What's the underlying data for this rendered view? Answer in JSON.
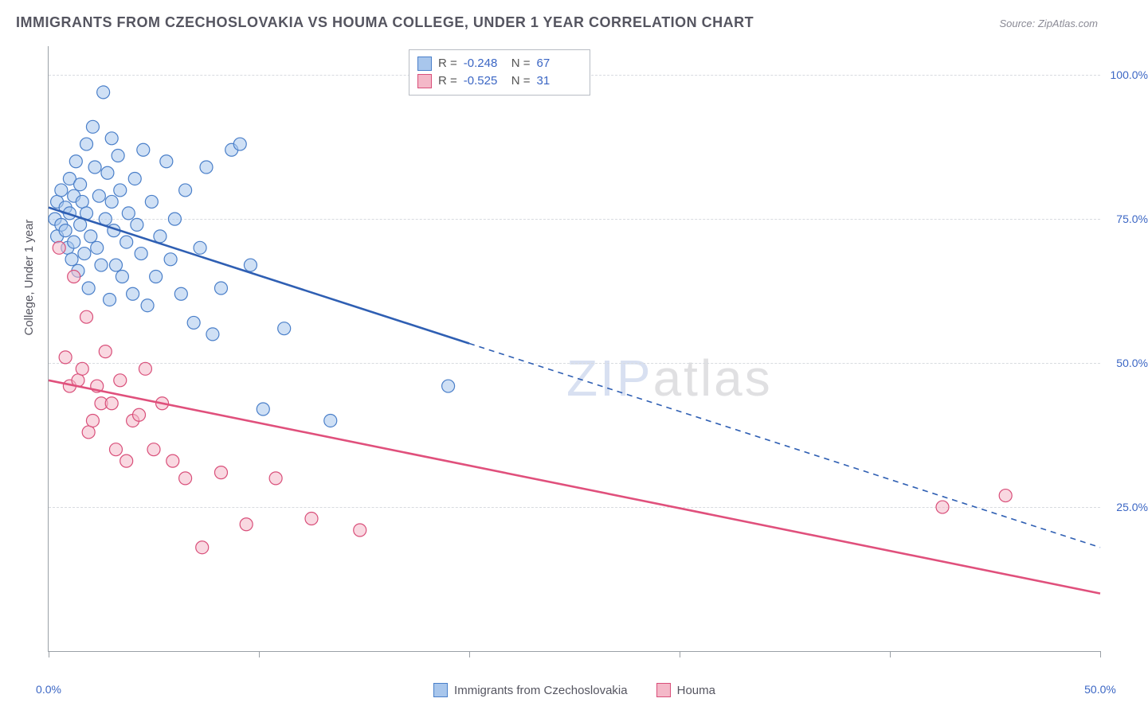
{
  "title": "IMMIGRANTS FROM CZECHOSLOVAKIA VS HOUMA COLLEGE, UNDER 1 YEAR CORRELATION CHART",
  "source_label": "Source: ZipAtlas.com",
  "ylabel": "College, Under 1 year",
  "watermark_zip": "ZIP",
  "watermark_atlas": "atlas",
  "chart": {
    "type": "scatter",
    "xlim": [
      0,
      50
    ],
    "ylim": [
      0,
      105
    ],
    "x_ticks": [
      0,
      10,
      20,
      30,
      40,
      50
    ],
    "x_tick_labels": [
      "0.0%",
      "",
      "",
      "",
      "",
      "50.0%"
    ],
    "y_gridlines": [
      25,
      50,
      75,
      100
    ],
    "y_tick_labels": [
      "25.0%",
      "50.0%",
      "75.0%",
      "100.0%"
    ],
    "background_color": "#ffffff",
    "grid_color": "#d8dbe0",
    "axis_color": "#9aa0a6"
  },
  "series": [
    {
      "key": "czech",
      "label": "Immigrants from Czechoslovakia",
      "fill": "#a8c6ec",
      "stroke": "#4a7fc9",
      "fill_opacity": 0.55,
      "line_color": "#2f5fb3",
      "marker_radius": 8,
      "R_label": "R =",
      "R": "-0.248",
      "N_label": "N =",
      "N": "67",
      "trend": {
        "x1": 0,
        "y1": 77,
        "x2": 50,
        "y2": 18,
        "solid_until_x": 20
      },
      "points": [
        [
          0.3,
          75
        ],
        [
          0.4,
          72
        ],
        [
          0.4,
          78
        ],
        [
          0.6,
          80
        ],
        [
          0.6,
          74
        ],
        [
          0.8,
          73
        ],
        [
          0.8,
          77
        ],
        [
          0.9,
          70
        ],
        [
          1.0,
          76
        ],
        [
          1.0,
          82
        ],
        [
          1.1,
          68
        ],
        [
          1.2,
          71
        ],
        [
          1.2,
          79
        ],
        [
          1.3,
          85
        ],
        [
          1.4,
          66
        ],
        [
          1.5,
          74
        ],
        [
          1.5,
          81
        ],
        [
          1.6,
          78
        ],
        [
          1.7,
          69
        ],
        [
          1.8,
          76
        ],
        [
          1.8,
          88
        ],
        [
          1.9,
          63
        ],
        [
          2.0,
          72
        ],
        [
          2.1,
          91
        ],
        [
          2.2,
          84
        ],
        [
          2.3,
          70
        ],
        [
          2.4,
          79
        ],
        [
          2.5,
          67
        ],
        [
          2.7,
          75
        ],
        [
          2.8,
          83
        ],
        [
          2.9,
          61
        ],
        [
          3.0,
          89
        ],
        [
          3.0,
          78
        ],
        [
          3.1,
          73
        ],
        [
          3.2,
          67
        ],
        [
          3.3,
          86
        ],
        [
          3.4,
          80
        ],
        [
          3.5,
          65
        ],
        [
          3.7,
          71
        ],
        [
          3.8,
          76
        ],
        [
          4.0,
          62
        ],
        [
          4.1,
          82
        ],
        [
          4.2,
          74
        ],
        [
          4.4,
          69
        ],
        [
          4.5,
          87
        ],
        [
          4.7,
          60
        ],
        [
          4.9,
          78
        ],
        [
          5.1,
          65
        ],
        [
          5.3,
          72
        ],
        [
          5.6,
          85
        ],
        [
          5.8,
          68
        ],
        [
          6.0,
          75
        ],
        [
          6.3,
          62
        ],
        [
          6.5,
          80
        ],
        [
          6.9,
          57
        ],
        [
          7.2,
          70
        ],
        [
          7.5,
          84
        ],
        [
          7.8,
          55
        ],
        [
          8.2,
          63
        ],
        [
          8.7,
          87
        ],
        [
          9.1,
          88
        ],
        [
          9.6,
          67
        ],
        [
          10.2,
          42
        ],
        [
          11.2,
          56
        ],
        [
          13.4,
          40
        ],
        [
          19.0,
          46
        ],
        [
          2.6,
          97
        ]
      ]
    },
    {
      "key": "houma",
      "label": "Houma",
      "fill": "#f4b8c8",
      "stroke": "#d94f7a",
      "fill_opacity": 0.55,
      "line_color": "#e0507c",
      "marker_radius": 8,
      "R_label": "R =",
      "R": "-0.525",
      "N_label": "N =",
      "N": "31",
      "trend": {
        "x1": 0,
        "y1": 47,
        "x2": 50,
        "y2": 10,
        "solid_until_x": 50
      },
      "points": [
        [
          0.5,
          70
        ],
        [
          0.8,
          51
        ],
        [
          1.0,
          46
        ],
        [
          1.2,
          65
        ],
        [
          1.4,
          47
        ],
        [
          1.6,
          49
        ],
        [
          1.8,
          58
        ],
        [
          1.9,
          38
        ],
        [
          2.1,
          40
        ],
        [
          2.3,
          46
        ],
        [
          2.5,
          43
        ],
        [
          2.7,
          52
        ],
        [
          3.0,
          43
        ],
        [
          3.2,
          35
        ],
        [
          3.4,
          47
        ],
        [
          3.7,
          33
        ],
        [
          4.0,
          40
        ],
        [
          4.3,
          41
        ],
        [
          4.6,
          49
        ],
        [
          5.0,
          35
        ],
        [
          5.4,
          43
        ],
        [
          5.9,
          33
        ],
        [
          6.5,
          30
        ],
        [
          7.3,
          18
        ],
        [
          8.2,
          31
        ],
        [
          9.4,
          22
        ],
        [
          10.8,
          30
        ],
        [
          12.5,
          23
        ],
        [
          14.8,
          21
        ],
        [
          42.5,
          25
        ],
        [
          45.5,
          27
        ]
      ]
    }
  ],
  "legend_bottom": [
    {
      "swatch_fill": "#a8c6ec",
      "swatch_stroke": "#4a7fc9",
      "label": "Immigrants from Czechoslovakia"
    },
    {
      "swatch_fill": "#f4b8c8",
      "swatch_stroke": "#d94f7a",
      "label": "Houma"
    }
  ]
}
